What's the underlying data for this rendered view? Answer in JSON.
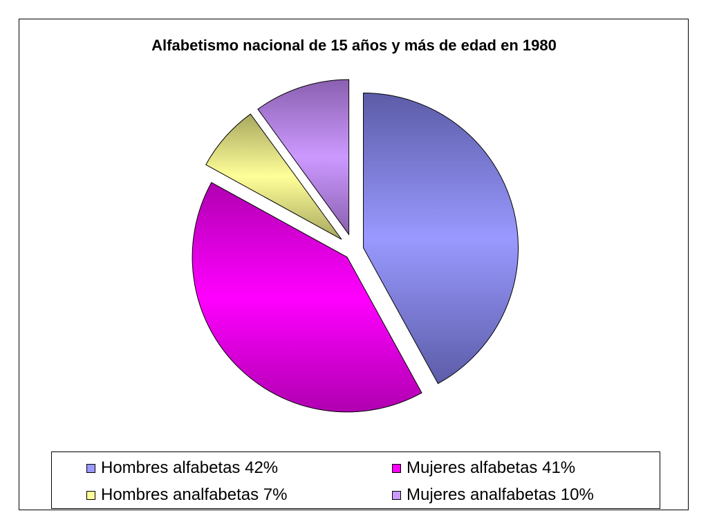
{
  "chart_data": {
    "type": "pie",
    "title": "Alfabetismo nacional de 15 años y más de edad en 1980",
    "legend_position": "bottom",
    "slices": [
      {
        "label": "Hombres alfabetas 42%",
        "value": 42,
        "color": "#9999ff",
        "edge_color": "#5c5ca8"
      },
      {
        "label": "Mujeres alfabetas 41%",
        "value": 41,
        "color": "#ff00ff",
        "edge_color": "#b000b0"
      },
      {
        "label": "Hombres analfabetas 7%",
        "value": 7,
        "color": "#ffff99",
        "edge_color": "#a8a860"
      },
      {
        "label": "Mujeres analfabetas 10%",
        "value": 10,
        "color": "#cc99ff",
        "edge_color": "#8a60b0"
      }
    ]
  }
}
